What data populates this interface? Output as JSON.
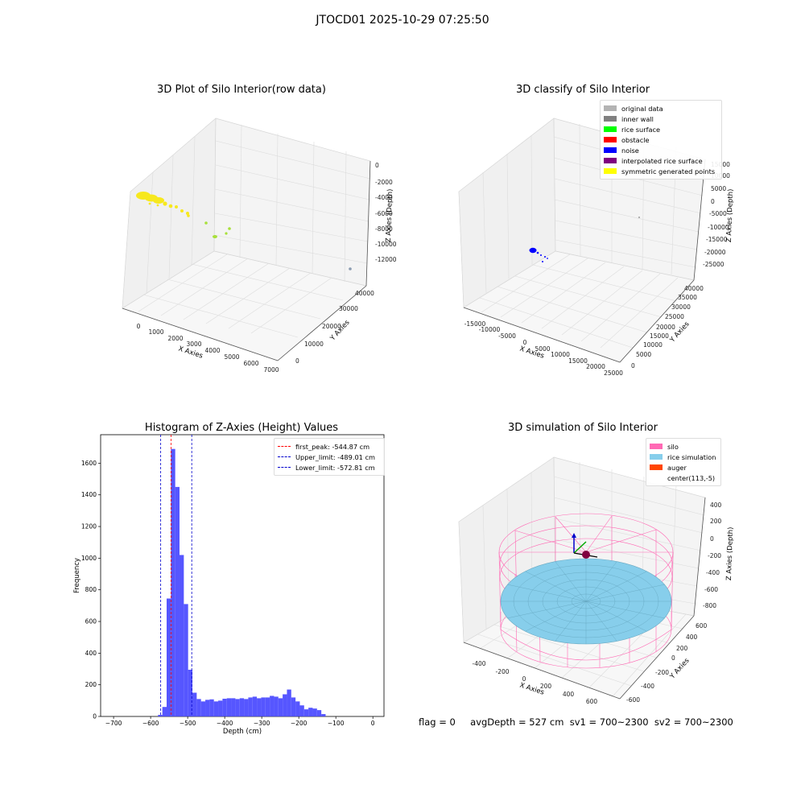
{
  "suptitle": "JTOCD01 2025-10-29 07:25:50",
  "footer": {
    "flag": "flag = 0",
    "avg": "avgDepth = 527 cm  sv1 = 700~2300  sv2 = 700~2300"
  },
  "colors": {
    "histogram_bar": "#4d4dff",
    "first_peak": "#ff0000",
    "limits": "#0000cc",
    "silo": "#ff69b4",
    "rice": "#87ceeb",
    "auger": "#ff4500",
    "yellow_points": "#f7e81e",
    "green_points": "#a8e03a"
  },
  "chart_data": [
    {
      "type": "scatter3d",
      "title": "3D Plot of Silo Interior(row data)",
      "xlabel": "X Axies",
      "ylabel": "Y Axies",
      "zlabel": "Z Axies (Depth)",
      "x_ticks": [
        "0",
        "1000",
        "2000",
        "3000",
        "4000",
        "5000",
        "6000",
        "7000"
      ],
      "y_ticks": [
        "0",
        "10000",
        "20000",
        "30000",
        "40000"
      ],
      "z_ticks": [
        "0",
        "-2000",
        "-4000",
        "-6000",
        "-8000",
        "-10000",
        "-12000"
      ]
    },
    {
      "type": "scatter3d",
      "title": "3D classify of Silo Interior",
      "xlabel": "X Axies",
      "ylabel": "Y Axies",
      "zlabel": "Z Axies (Depth)",
      "x_ticks": [
        "-15000",
        "-10000",
        "-5000",
        "0",
        "5000",
        "10000",
        "15000",
        "20000",
        "25000"
      ],
      "y_ticks": [
        "0",
        "5000",
        "10000",
        "15000",
        "20000",
        "25000",
        "30000",
        "35000",
        "40000"
      ],
      "z_ticks": [
        "15000",
        "10000",
        "5000",
        "0",
        "-5000",
        "-10000",
        "-15000",
        "-20000",
        "-25000"
      ],
      "legend": [
        {
          "label": "original data",
          "color": "#b3b3b3"
        },
        {
          "label": "inner wall",
          "color": "#808080"
        },
        {
          "label": "rice surface",
          "color": "#00ff00"
        },
        {
          "label": "obstacle",
          "color": "#ff0000"
        },
        {
          "label": "noise",
          "color": "#0000ff"
        },
        {
          "label": "interpolated rice surface",
          "color": "#800080"
        },
        {
          "label": "symmetric generated points",
          "color": "#ffff00"
        }
      ]
    },
    {
      "type": "bar",
      "title": "Histogram of Z-Axies (Height) Values",
      "xlabel": "Depth (cm)",
      "ylabel": "Frequency",
      "xlim": [
        -735,
        30
      ],
      "ylim": [
        0,
        1780
      ],
      "x_ticks": [
        -700,
        -600,
        -500,
        -400,
        -300,
        -200,
        -100,
        0
      ],
      "y_ticks": [
        0,
        200,
        400,
        600,
        800,
        1000,
        1200,
        1400,
        1600
      ],
      "bin_start": -580,
      "bin_width": 11.6,
      "values": [
        10,
        60,
        745,
        1690,
        1450,
        1020,
        710,
        295,
        150,
        110,
        95,
        105,
        108,
        95,
        100,
        112,
        115,
        115,
        110,
        115,
        110,
        120,
        125,
        115,
        120,
        120,
        130,
        125,
        115,
        140,
        170,
        120,
        95,
        70,
        45,
        55,
        50,
        40,
        15
      ],
      "vlines": [
        {
          "x": -544.87,
          "label": "first_peak: -544.87 cm",
          "color": "#ff0000"
        },
        {
          "x": -489.01,
          "label": "Upper_limit: -489.01 cm",
          "color": "#0000cc"
        },
        {
          "x": -572.81,
          "label": "Lower_limit: -572.81 cm",
          "color": "#0000cc"
        }
      ],
      "legend_position": "upper right"
    },
    {
      "type": "surface3d",
      "title": "3D simulation of Silo Interior",
      "xlabel": "X Axies",
      "ylabel": "Y Axies",
      "zlabel": "Z Axies (Depth)",
      "x_ticks": [
        "-400",
        "-200",
        "0",
        "200",
        "400",
        "600"
      ],
      "y_ticks": [
        "-600",
        "-400",
        "-200",
        "0",
        "200",
        "400",
        "600"
      ],
      "z_ticks": [
        "400",
        "200",
        "0",
        "-200",
        "-400",
        "-600",
        "-800"
      ],
      "legend": [
        {
          "label": "silo",
          "color": "#ff69b4"
        },
        {
          "label": "rice simulation",
          "color": "#87ceeb"
        },
        {
          "label": "auger",
          "color": "#ff4500"
        },
        {
          "label": "center(113,-5)",
          "color": ""
        }
      ]
    }
  ]
}
